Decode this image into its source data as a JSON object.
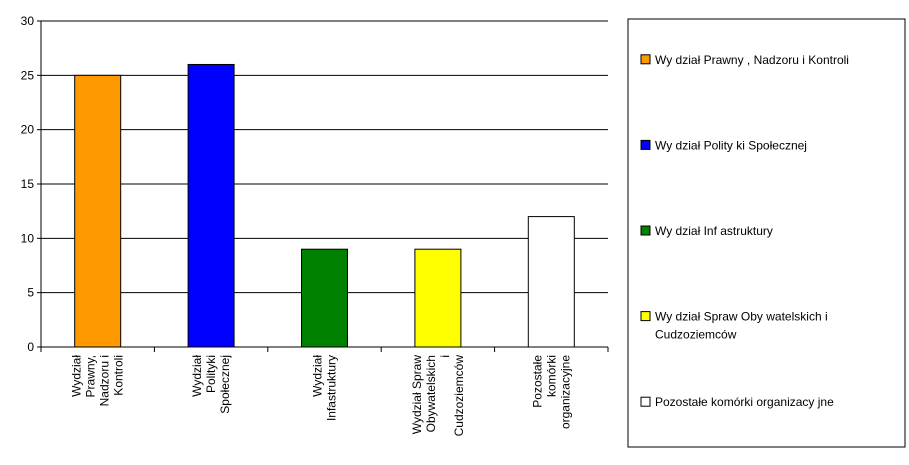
{
  "chart_data": {
    "type": "bar",
    "title": "",
    "xlabel": "",
    "ylabel": "",
    "ylim": [
      0,
      30
    ],
    "yticks": [
      0,
      5,
      10,
      15,
      20,
      25,
      30
    ],
    "grid": true,
    "legend_position": "right",
    "categories": [
      {
        "lines": [
          "Wydział",
          "Prawny,",
          "Nadzoru i",
          "Kontroli"
        ]
      },
      {
        "lines": [
          "Wydział",
          "Polityki",
          "Społecznej"
        ]
      },
      {
        "lines": [
          "Wydział",
          "Infastruktury"
        ]
      },
      {
        "lines": [
          "Wydział Spraw",
          "Obywatelskich",
          "i",
          "Cudzoziemców"
        ]
      },
      {
        "lines": [
          "Pozostałe",
          "komórki",
          "organizacyjne"
        ]
      }
    ],
    "values": [
      25,
      26,
      9,
      9,
      12
    ],
    "colors": [
      "#ff9900",
      "#0000ff",
      "#008000",
      "#ffff00",
      "#ffffff"
    ],
    "legend": [
      {
        "lines": [
          "Wy dział Prawny , Nadzoru i Kontroli"
        ],
        "color": "#ff9900"
      },
      {
        "lines": [
          "Wy dział Polity ki Społecznej"
        ],
        "color": "#0000ff"
      },
      {
        "lines": [
          "Wy dział Inf astruktury"
        ],
        "color": "#008000"
      },
      {
        "lines": [
          "Wy dział Spraw Oby watelskich i",
          "Cudzoziemców"
        ],
        "color": "#ffff00"
      },
      {
        "lines": [
          "Pozostałe komórki organizacy jne"
        ],
        "color": "#ffffff"
      }
    ]
  }
}
